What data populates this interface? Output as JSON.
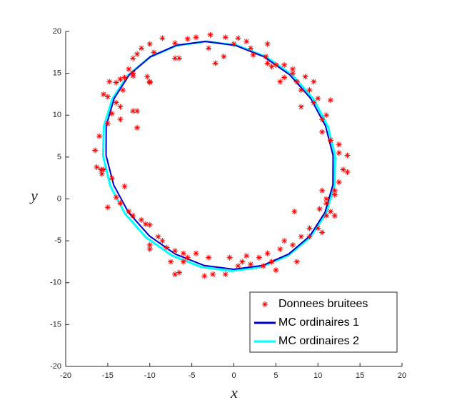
{
  "chart_data": {
    "type": "scatter",
    "xlabel": "x",
    "ylabel": "y",
    "xlim": [
      -20,
      20
    ],
    "ylim": [
      -20,
      20
    ],
    "xticks": [
      -20,
      -15,
      -10,
      -5,
      0,
      5,
      10,
      15,
      20
    ],
    "yticks": [
      -20,
      -15,
      -10,
      -5,
      0,
      5,
      10,
      15,
      20
    ],
    "legend": "lower right",
    "series": [
      {
        "name": "Donnees bruitees",
        "type": "scatter",
        "color": "#ff0000",
        "x": [
          -8.5,
          -7,
          -5.5,
          -4.5,
          -2.8,
          -1,
          0.5,
          1.5,
          -3,
          -1.2,
          -2.2,
          0,
          2,
          2.3,
          3.8,
          4,
          4,
          -6.5,
          -7,
          -9.5,
          -10,
          -11,
          -11.5,
          -12,
          -12.5,
          -13,
          -13.5,
          -14,
          -14.8,
          -15,
          -15.5,
          -14,
          -13.2,
          -12,
          -10,
          -10,
          -10.3,
          -12,
          -13.5,
          -14.5,
          -13.5,
          -11.5,
          -15,
          -16,
          -16.5,
          -15.8,
          -16.3,
          -15.5,
          -15.7,
          -14.5,
          -13,
          -14,
          -13.5,
          -12.5,
          -12,
          -11,
          -10.5,
          -10,
          -9,
          -8.5,
          -10,
          -8,
          -7,
          -6,
          -7.5,
          -6,
          -7,
          -6.5,
          -5.5,
          -4.5,
          -3,
          -2.5,
          -3.5,
          -1,
          -0.5,
          0.5,
          1,
          1.5,
          2,
          3,
          3.5,
          4.5,
          4,
          5,
          5.5,
          6,
          7,
          7.5,
          8,
          9,
          9,
          10,
          10.5,
          11,
          11.5,
          12,
          11,
          10.2,
          11,
          12,
          12,
          10.5,
          12.5,
          13,
          13.5,
          13.5,
          12.5,
          12.5,
          11.5,
          10.5,
          10.5,
          11,
          11.5,
          9.5,
          8,
          10,
          9,
          9.5,
          8.5,
          7.5,
          7,
          6,
          5.5,
          6,
          5,
          4.5,
          7,
          8,
          7.2,
          -11.5,
          -12,
          -15,
          -10
        ],
        "y": [
          19.2,
          18.6,
          19.1,
          19.3,
          19.6,
          19.3,
          19.2,
          18.8,
          18,
          17,
          16.2,
          18.5,
          18,
          17.2,
          17,
          18.5,
          16.2,
          16.8,
          16.8,
          17.5,
          18.5,
          18,
          17.3,
          16.8,
          15.5,
          14.5,
          14.3,
          13.9,
          14,
          12.2,
          12.5,
          11.5,
          13,
          15,
          14,
          13.9,
          14.6,
          14.7,
          11,
          10.2,
          9.5,
          10.5,
          9,
          7.5,
          5.8,
          3.5,
          3.8,
          3.5,
          3,
          2.5,
          1.5,
          0.2,
          -0.5,
          -1.5,
          -2,
          -2.5,
          -3,
          -3.1,
          -4.5,
          -5,
          -5.5,
          -5.8,
          -6.2,
          -6.5,
          -7.5,
          -7.5,
          -9,
          -8.8,
          -7,
          -6.5,
          -7,
          -9,
          -9.2,
          -9,
          -7,
          -8,
          -7.5,
          -6.8,
          -7.8,
          -7,
          -8,
          -7.5,
          -6.5,
          -8.5,
          -6,
          -5,
          -5.5,
          -7.5,
          -4.5,
          -4.5,
          -3.5,
          -3.5,
          -4,
          -2,
          -1.5,
          -2,
          -0.5,
          -1.2,
          0,
          0.5,
          1,
          1,
          2,
          3.5,
          3.2,
          5.2,
          5.5,
          6.5,
          7,
          8,
          9.5,
          10,
          11.8,
          11.5,
          11,
          12,
          13,
          14,
          14.6,
          14,
          15,
          16,
          14,
          14.5,
          16,
          15.8,
          15.5,
          13,
          -1.5,
          8.5,
          10.5,
          -1,
          -6
        ]
      },
      {
        "name": "MC ordinaires 1",
        "type": "line",
        "color": "#0000cd",
        "x": [
          11.8,
          10.9,
          9.14,
          6.64,
          3.58,
          0.16,
          -3.4,
          -6.84,
          -9.92,
          -12.44,
          -14.24,
          -15.18,
          -15.2,
          -14.3,
          -12.54,
          -10.04,
          -6.98,
          -3.56,
          0,
          3.44,
          6.52,
          9.04,
          10.84,
          11.78,
          11.8
        ],
        "y": [
          5.2,
          8.72,
          12,
          14.82,
          16.98,
          18.34,
          18.8,
          18.34,
          16.98,
          14.82,
          12,
          8.72,
          5.2,
          1.68,
          -1.6,
          -4.42,
          -6.58,
          -7.94,
          -8.4,
          -7.94,
          -6.58,
          -4.42,
          -1.6,
          1.68,
          5.2
        ]
      },
      {
        "name": "MC ordinaires 2",
        "type": "line",
        "color": "#00ffff",
        "x": [
          12.05,
          11.19,
          9.45,
          6.95,
          3.85,
          0.37,
          -3.25,
          -6.77,
          -9.95,
          -12.57,
          -14.45,
          -15.47,
          -15.55,
          -14.69,
          -12.95,
          -10.45,
          -7.35,
          -3.87,
          -0.25,
          3.27,
          6.45,
          9.07,
          10.95,
          11.97,
          12.05
        ],
        "y": [
          5.1,
          8.65,
          11.95,
          14.79,
          16.96,
          18.33,
          18.8,
          18.33,
          16.96,
          14.79,
          11.95,
          8.65,
          5.1,
          1.55,
          -1.75,
          -4.59,
          -6.76,
          -8.13,
          -8.6,
          -8.13,
          -6.76,
          -4.59,
          -1.75,
          1.55,
          5.1
        ]
      }
    ]
  }
}
